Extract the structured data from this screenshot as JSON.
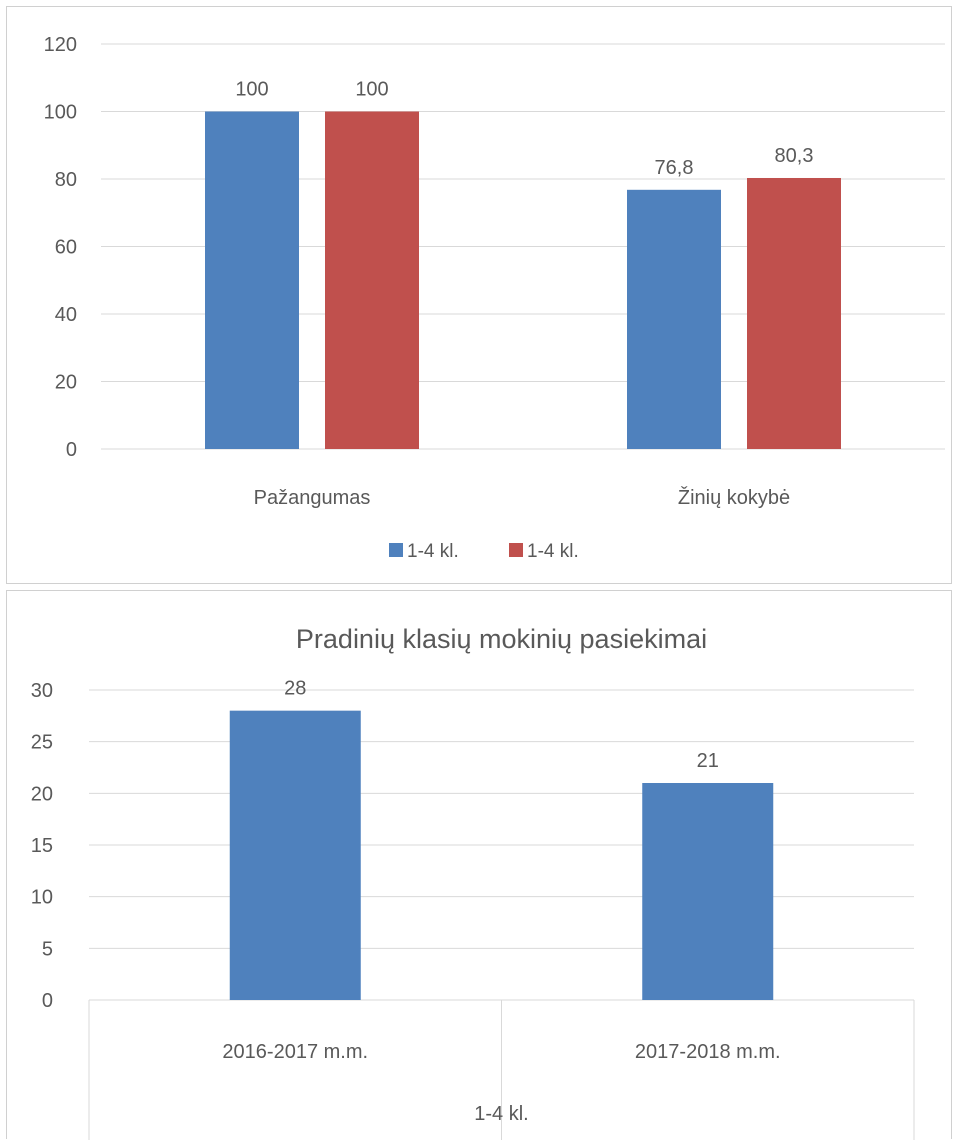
{
  "chart_data": [
    {
      "type": "bar",
      "title": "",
      "categories": [
        "Pažangumas",
        "Žinių kokybė"
      ],
      "series": [
        {
          "name": "1-4 kl.",
          "color": "#4f81bd",
          "values": [
            100,
            76.8
          ],
          "labels": [
            "100",
            "76,8"
          ]
        },
        {
          "name": "1-4 kl.",
          "color": "#c0504d",
          "values": [
            100,
            80.3
          ],
          "labels": [
            "100",
            "80,3"
          ]
        }
      ],
      "ylim": [
        0,
        120
      ],
      "yticks": [
        "0",
        "20",
        "40",
        "60",
        "80",
        "100",
        "120"
      ],
      "grid": true,
      "legend": "bottom"
    },
    {
      "type": "bar",
      "title": "Pradinių klasių mokinių pasiekimai",
      "categories": [
        "2016-2017 m.m.",
        "2017-2018 m.m."
      ],
      "series": [
        {
          "name": "",
          "color": "#4f81bd",
          "values": [
            28,
            21
          ],
          "labels": [
            "28",
            "21"
          ]
        }
      ],
      "ylim": [
        0,
        30
      ],
      "yticks": [
        "0",
        "5",
        "10",
        "15",
        "20",
        "25",
        "30"
      ],
      "grid": true,
      "xlabel": "1-4 kl."
    }
  ]
}
